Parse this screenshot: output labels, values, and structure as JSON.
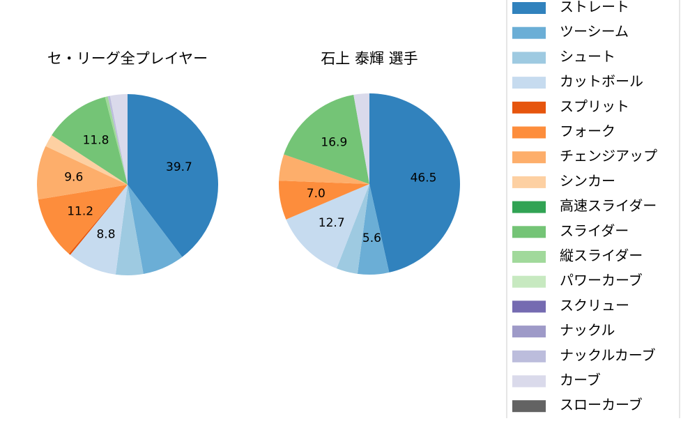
{
  "chart_data": [
    {
      "type": "pie",
      "title": "セ・リーグ全プレイヤー",
      "categories": [
        "ストレート",
        "ツーシーム",
        "シュート",
        "カットボール",
        "スプリット",
        "フォーク",
        "チェンジアップ",
        "シンカー",
        "スライダー",
        "縦スライダー",
        "ナックルカーブ",
        "カーブ"
      ],
      "values": [
        39.7,
        7.5,
        4.9,
        8.8,
        0.3,
        11.2,
        9.6,
        2.2,
        11.8,
        0.5,
        0.4,
        3.1
      ],
      "value_labels": [
        "39.7",
        null,
        null,
        "8.8",
        null,
        "11.2",
        "9.6",
        null,
        "11.8",
        null,
        null,
        null
      ],
      "colors": [
        "#3182bd",
        "#6baed6",
        "#9ecae1",
        "#c6dbef",
        "#e6550d",
        "#fd8d3c",
        "#fdae6b",
        "#fdd0a2",
        "#74c476",
        "#a1d99b",
        "#bcbddc",
        "#dadaeb"
      ]
    },
    {
      "type": "pie",
      "title": "石上 泰輝  選手",
      "categories": [
        "ストレート",
        "ツーシーム",
        "シュート",
        "カットボール",
        "フォーク",
        "チェンジアップ",
        "スライダー",
        "カーブ"
      ],
      "values": [
        46.5,
        5.6,
        3.8,
        12.7,
        7.0,
        4.7,
        16.9,
        2.8
      ],
      "value_labels": [
        "46.5",
        "5.6",
        null,
        "12.7",
        "7.0",
        null,
        "16.9",
        null
      ],
      "colors": [
        "#3182bd",
        "#6baed6",
        "#9ecae1",
        "#c6dbef",
        "#fd8d3c",
        "#fdae6b",
        "#74c476",
        "#dadaeb"
      ]
    }
  ],
  "legend": {
    "position": "right",
    "entries": [
      "ストレート",
      "ツーシーム",
      "シュート",
      "カットボール",
      "スプリット",
      "フォーク",
      "チェンジアップ",
      "シンカー",
      "高速スライダー",
      "スライダー",
      "縦スライダー",
      "パワーカーブ",
      "スクリュー",
      "ナックル",
      "ナックルカーブ",
      "カーブ",
      "スローカーブ"
    ],
    "colors": [
      "#3182bd",
      "#6baed6",
      "#9ecae1",
      "#c6dbef",
      "#e6550d",
      "#fd8d3c",
      "#fdae6b",
      "#fdd0a2",
      "#31a354",
      "#74c476",
      "#a1d99b",
      "#c7e9c0",
      "#756bb1",
      "#9e9ac8",
      "#bcbddc",
      "#dadaeb",
      "#636363"
    ]
  }
}
